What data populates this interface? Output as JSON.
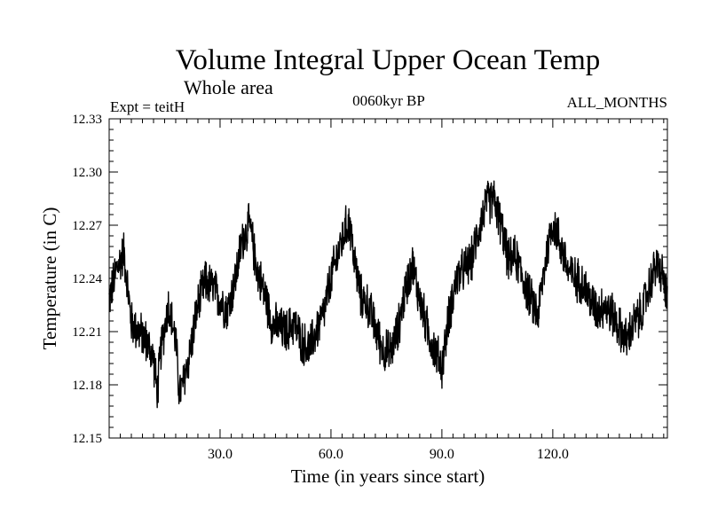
{
  "chart_data": {
    "type": "line",
    "title": "Volume Integral Upper Ocean Temp",
    "subtitle": "Whole area",
    "experiment_label": "Expt = teitH",
    "period_label": "0060kyr BP",
    "months_label": "ALL_MONTHS",
    "xlabel": "Time (in years since start)",
    "ylabel": "Temperature (in C)",
    "xlim": [
      0,
      151
    ],
    "ylim": [
      12.15,
      12.33
    ],
    "x_ticks": [
      30,
      60,
      90,
      120
    ],
    "x_tick_labels": [
      "30.0",
      "60.0",
      "90.0",
      "120.0"
    ],
    "y_ticks": [
      12.15,
      12.18,
      12.21,
      12.24,
      12.27,
      12.3,
      12.33
    ],
    "y_tick_labels": [
      "12.15",
      "12.18",
      "12.21",
      "12.24",
      "12.27",
      "12.30",
      "12.33"
    ],
    "grid": false,
    "legend": "none",
    "series": [
      {
        "name": "Temperature",
        "x": [
          0,
          2,
          4,
          6,
          8,
          10,
          12,
          13,
          14,
          16,
          18,
          19,
          20,
          22,
          24,
          26,
          28,
          30,
          32,
          34,
          36,
          38,
          40,
          42,
          44,
          46,
          48,
          50,
          52,
          54,
          56,
          58,
          60,
          62,
          64,
          65,
          66,
          68,
          70,
          72,
          74,
          76,
          78,
          80,
          82,
          84,
          86,
          88,
          90,
          92,
          94,
          96,
          98,
          100,
          102,
          104,
          106,
          108,
          110,
          112,
          114,
          116,
          118,
          120,
          122,
          124,
          126,
          128,
          130,
          132,
          134,
          136,
          138,
          140,
          142,
          144,
          146,
          148,
          150,
          151
        ],
        "values": [
          12.228,
          12.245,
          12.255,
          12.215,
          12.21,
          12.205,
          12.195,
          12.175,
          12.2,
          12.225,
          12.205,
          12.175,
          12.18,
          12.2,
          12.225,
          12.238,
          12.235,
          12.228,
          12.222,
          12.238,
          12.262,
          12.27,
          12.245,
          12.232,
          12.215,
          12.212,
          12.21,
          12.215,
          12.205,
          12.2,
          12.21,
          12.22,
          12.24,
          12.255,
          12.268,
          12.272,
          12.255,
          12.23,
          12.225,
          12.212,
          12.2,
          12.198,
          12.21,
          12.232,
          12.248,
          12.228,
          12.212,
          12.2,
          12.19,
          12.22,
          12.24,
          12.245,
          12.25,
          12.268,
          12.282,
          12.285,
          12.27,
          12.25,
          12.252,
          12.24,
          12.228,
          12.22,
          12.25,
          12.272,
          12.26,
          12.245,
          12.24,
          12.238,
          12.228,
          12.222,
          12.225,
          12.22,
          12.212,
          12.205,
          12.215,
          12.22,
          12.235,
          12.248,
          12.24,
          12.225
        ]
      }
    ]
  }
}
